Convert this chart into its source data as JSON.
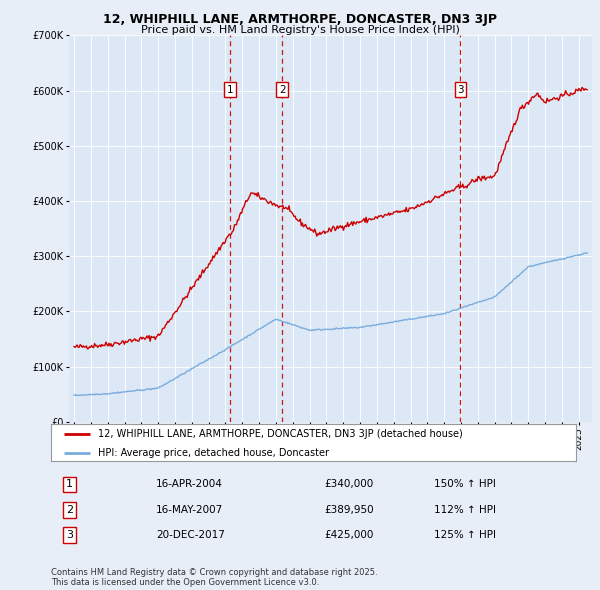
{
  "title": "12, WHIPHILL LANE, ARMTHORPE, DONCASTER, DN3 3JP",
  "subtitle": "Price paid vs. HM Land Registry's House Price Index (HPI)",
  "background_color": "#e8eef8",
  "plot_bg_color": "#dce8f5",
  "ylim": [
    0,
    700000
  ],
  "yticks": [
    0,
    100000,
    200000,
    300000,
    400000,
    500000,
    600000,
    700000
  ],
  "ytick_labels": [
    "£0",
    "£100K",
    "£200K",
    "£300K",
    "£400K",
    "£500K",
    "£600K",
    "£700K"
  ],
  "red_line_color": "#cc0000",
  "blue_line_color": "#7aaddd",
  "vline_color": "#cc0000",
  "purchases": [
    {
      "date_num": 2004.29,
      "price": 340000,
      "label": "1"
    },
    {
      "date_num": 2007.37,
      "price": 389950,
      "label": "2"
    },
    {
      "date_num": 2017.97,
      "price": 425000,
      "label": "3"
    }
  ],
  "purchase_table": [
    {
      "num": "1",
      "date": "16-APR-2004",
      "price": "£340,000",
      "hpi": "150% ↑ HPI"
    },
    {
      "num": "2",
      "date": "16-MAY-2007",
      "price": "£389,950",
      "hpi": "112% ↑ HPI"
    },
    {
      "num": "3",
      "date": "20-DEC-2017",
      "price": "£425,000",
      "hpi": "125% ↑ HPI"
    }
  ],
  "legend_entries": [
    "12, WHIPHILL LANE, ARMTHORPE, DONCASTER, DN3 3JP (detached house)",
    "HPI: Average price, detached house, Doncaster"
  ],
  "footer": "Contains HM Land Registry data © Crown copyright and database right 2025.\nThis data is licensed under the Open Government Licence v3.0."
}
